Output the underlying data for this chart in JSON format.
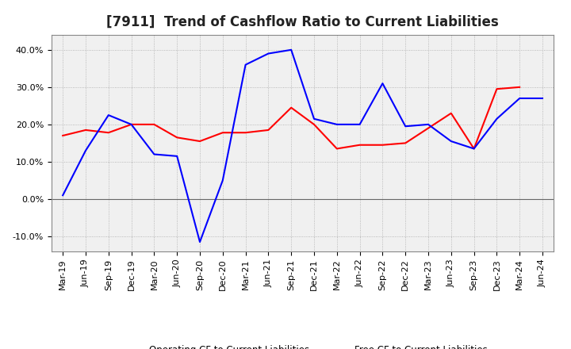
{
  "title": "[7911]  Trend of Cashflow Ratio to Current Liabilities",
  "x_labels": [
    "Mar-19",
    "Jun-19",
    "Sep-19",
    "Dec-19",
    "Mar-20",
    "Jun-20",
    "Sep-20",
    "Dec-20",
    "Mar-21",
    "Jun-21",
    "Sep-21",
    "Dec-21",
    "Mar-22",
    "Jun-22",
    "Sep-22",
    "Dec-22",
    "Mar-23",
    "Jun-23",
    "Sep-23",
    "Dec-23",
    "Mar-24",
    "Jun-24"
  ],
  "operating_cf": [
    0.17,
    0.185,
    0.178,
    0.2,
    0.2,
    0.165,
    0.155,
    0.178,
    0.178,
    0.185,
    0.245,
    0.2,
    0.135,
    0.145,
    0.145,
    0.15,
    0.19,
    0.23,
    0.135,
    0.295,
    0.3,
    null
  ],
  "free_cf": [
    0.01,
    0.13,
    0.225,
    0.2,
    0.12,
    0.115,
    -0.115,
    0.05,
    0.36,
    0.39,
    0.4,
    0.215,
    0.2,
    0.2,
    0.31,
    0.195,
    0.2,
    0.155,
    0.135,
    0.215,
    0.27,
    0.27
  ],
  "operating_color": "#FF0000",
  "free_color": "#0000FF",
  "ylim": [
    -0.14,
    0.44
  ],
  "yticks": [
    -0.1,
    0.0,
    0.1,
    0.2,
    0.3,
    0.4
  ],
  "background_color": "#FFFFFF",
  "plot_bg_color": "#F0F0F0",
  "grid_color": "#AAAAAA",
  "title_fontsize": 12,
  "tick_fontsize": 8,
  "legend_labels": [
    "Operating CF to Current Liabilities",
    "Free CF to Current Liabilities"
  ]
}
